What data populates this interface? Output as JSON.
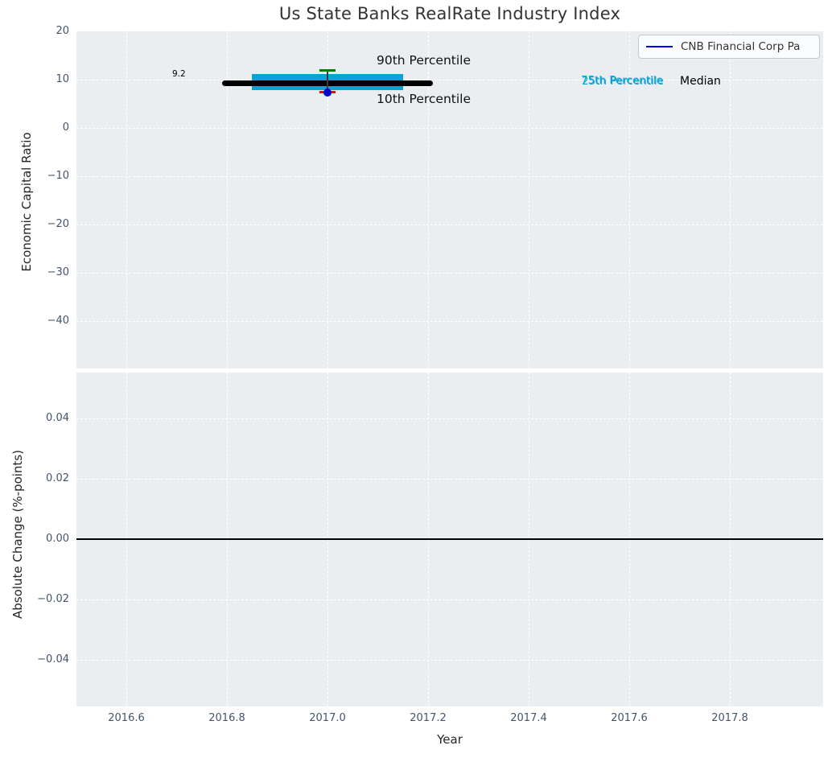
{
  "figure": {
    "title": "Us State Banks RealRate Industry Index",
    "plot_bg_color": "#ebeef0",
    "grid_color": "#ffffff"
  },
  "legend": {
    "label": "CNB Financial Corp Pa",
    "line_color": "#0000ff",
    "position": "upper right"
  },
  "annotations": {
    "median_value_label": "9.2",
    "p90_label": "90th Percentile",
    "p10_label": "10th Percentile",
    "p75_label": "75th Percentile",
    "p25_label": "25th Percentile",
    "median_label": "Median"
  },
  "colors": {
    "box_fill": "#0ba3d5",
    "median_line": "#000000",
    "p90_cap": "#007e00",
    "p10_cap": "#ff0000",
    "company_dot": "#0000cd",
    "tick_label": "#44546a",
    "zero_line": "#000000"
  },
  "chart_data": [
    {
      "type": "boxplot",
      "title": "Us State Banks RealRate Industry Index",
      "xlabel": "Year",
      "ylabel": "Economic Capital Ratio",
      "xlim": [
        2016.5,
        2017.99
      ],
      "ylim": [
        -49.9,
        19.9
      ],
      "grid": true,
      "legend_position": "upper right",
      "xticks": {
        "values": [
          2016.6,
          2016.8,
          2017.0,
          2017.2,
          2017.4,
          2017.6,
          2017.8
        ],
        "labels": [
          "2016.6",
          "2016.8",
          "2017.0",
          "2017.2",
          "2017.4",
          "2017.6",
          "2017.8"
        ],
        "labels_visible": false
      },
      "yticks": {
        "values": [
          20,
          10,
          0,
          -10,
          -20,
          -30,
          -40
        ],
        "labels": [
          "20",
          "10",
          "0",
          "−10",
          "−20",
          "−30",
          "−40"
        ]
      },
      "box": {
        "x": 2017.0,
        "median": 9.2,
        "q1": 7.75,
        "q3": 11.1,
        "p10": 7.3,
        "p90": 11.9,
        "box_halfwidth_years": 0.15,
        "median_halfwidth_years": 0.21,
        "cap_halfwidth_years": 0.016
      },
      "series": [
        {
          "name": "CNB Financial Corp Pa",
          "x": [
            2017.0
          ],
          "y": [
            7.2
          ],
          "marker": "circle",
          "color": "#0000cd"
        }
      ]
    },
    {
      "type": "line",
      "xlabel": "Year",
      "ylabel": "Absolute Change (%-points)",
      "xlim": [
        2016.5,
        2017.99
      ],
      "ylim": [
        -0.0555,
        0.0552
      ],
      "grid": true,
      "xticks": {
        "values": [
          2016.6,
          2016.8,
          2017.0,
          2017.2,
          2017.4,
          2017.6,
          2017.8
        ],
        "labels": [
          "2016.6",
          "2016.8",
          "2017.0",
          "2017.2",
          "2017.4",
          "2017.6",
          "2017.8"
        ],
        "labels_visible": true
      },
      "yticks": {
        "values": [
          0.04,
          0.02,
          0.0,
          -0.02,
          -0.04
        ],
        "labels": [
          "0.04",
          "0.02",
          "0.00",
          "−0.02",
          "−0.04"
        ]
      },
      "zero_line": 0.0,
      "series": []
    }
  ]
}
